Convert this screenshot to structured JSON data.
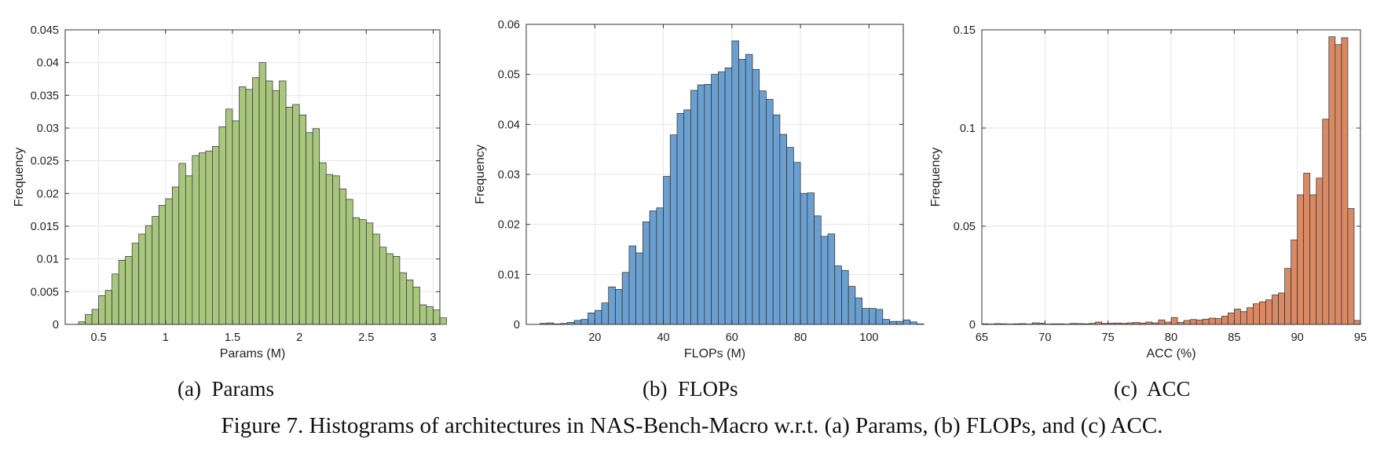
{
  "figure": {
    "caption": "Figure 7. Histograms of architectures in NAS-Bench-Macro w.r.t. (a) Params, (b) FLOPs, and (c) ACC."
  },
  "chart_data": [
    {
      "type": "bar",
      "subcaption": "(a)  Params",
      "xlabel": "Params (M)",
      "ylabel": "Frequency",
      "color": "#a9c67f",
      "grid": true,
      "xlim": [
        0.25,
        3.05
      ],
      "ylim": [
        0,
        0.045
      ],
      "xticks": [
        0.5,
        1,
        1.5,
        2,
        2.5,
        3
      ],
      "xtick_labels": [
        "0.5",
        "1",
        "1.5",
        "2",
        "2.5",
        "3"
      ],
      "yticks": [
        0,
        0.005,
        0.01,
        0.015,
        0.02,
        0.025,
        0.03,
        0.035,
        0.04,
        0.045
      ],
      "ytick_labels": [
        "0",
        "0.005",
        "0.01",
        "0.015",
        "0.02",
        "0.025",
        "0.03",
        "0.035",
        "0.04",
        "0.045"
      ],
      "bin_start": 0.35,
      "bin_width": 0.05,
      "values": [
        0.0004,
        0.0015,
        0.0023,
        0.0044,
        0.0052,
        0.0077,
        0.0098,
        0.0104,
        0.0124,
        0.0138,
        0.0151,
        0.0165,
        0.0182,
        0.0192,
        0.021,
        0.0246,
        0.0227,
        0.0258,
        0.0262,
        0.0265,
        0.0272,
        0.0302,
        0.0329,
        0.0311,
        0.0363,
        0.0359,
        0.0377,
        0.04,
        0.0372,
        0.0357,
        0.0372,
        0.0332,
        0.0336,
        0.032,
        0.0293,
        0.0299,
        0.0247,
        0.0229,
        0.0227,
        0.0207,
        0.0191,
        0.0163,
        0.016,
        0.0155,
        0.0138,
        0.0118,
        0.0108,
        0.0104,
        0.0079,
        0.0068,
        0.0057,
        0.003,
        0.0027,
        0.0022,
        0.001
      ]
    },
    {
      "type": "bar",
      "subcaption": "(b)  FLOPs",
      "xlabel": "FLOPs (M)",
      "ylabel": "Frequency",
      "color": "#6a9fcf",
      "grid": true,
      "xlim": [
        0,
        110
      ],
      "ylim": [
        0,
        0.06
      ],
      "xticks": [
        20,
        40,
        60,
        80,
        100
      ],
      "xtick_labels": [
        "20",
        "40",
        "60",
        "80",
        "100"
      ],
      "yticks": [
        0,
        0.01,
        0.02,
        0.03,
        0.04,
        0.05,
        0.06
      ],
      "ytick_labels": [
        "0",
        "0.01",
        "0.02",
        "0.03",
        "0.04",
        "0.05",
        "0.06"
      ],
      "bin_start": 4,
      "bin_width": 2,
      "values": [
        0.0002,
        0.0003,
        0.0001,
        0.0002,
        0.0004,
        0.0008,
        0.001,
        0.0023,
        0.0028,
        0.0043,
        0.0075,
        0.007,
        0.0104,
        0.0157,
        0.0143,
        0.0205,
        0.0227,
        0.0233,
        0.0296,
        0.0379,
        0.0422,
        0.0429,
        0.0468,
        0.0479,
        0.048,
        0.05,
        0.0505,
        0.0513,
        0.0567,
        0.053,
        0.054,
        0.051,
        0.0467,
        0.045,
        0.0419,
        0.038,
        0.0354,
        0.0324,
        0.0262,
        0.0263,
        0.0217,
        0.0176,
        0.0181,
        0.0117,
        0.0108,
        0.0076,
        0.0053,
        0.0032,
        0.0032,
        0.003,
        0.001,
        0.0006,
        0.0006,
        0.0009,
        0.0005,
        0.0001
      ]
    },
    {
      "type": "bar",
      "subcaption": "(c)  ACC",
      "xlabel": "ACC (%)",
      "ylabel": "Frequency",
      "color": "#d98a64",
      "grid": true,
      "xlim": [
        65,
        95
      ],
      "ylim": [
        0,
        0.15
      ],
      "xticks": [
        65,
        70,
        75,
        80,
        85,
        90,
        95
      ],
      "xtick_labels": [
        "65",
        "70",
        "75",
        "80",
        "85",
        "90",
        "95"
      ],
      "yticks": [
        0,
        0.05,
        0.1,
        0.15
      ],
      "ytick_labels": [
        "0",
        "0.05",
        "0.1",
        "0.15"
      ],
      "bin_start": 65.0,
      "bin_width": 0.5,
      "values": [
        0.0003,
        0.0002,
        0.0004,
        0.0003,
        0.0002,
        0.0003,
        0.0004,
        0.0002,
        0.0008,
        0.0006,
        0.0002,
        0.0003,
        0.0003,
        0.0002,
        0.0005,
        0.0004,
        0.0003,
        0.0005,
        0.0012,
        0.0005,
        0.0006,
        0.0007,
        0.0005,
        0.0008,
        0.001,
        0.0007,
        0.0012,
        0.0008,
        0.0023,
        0.0012,
        0.0035,
        0.001,
        0.002,
        0.0025,
        0.0022,
        0.0027,
        0.0032,
        0.003,
        0.0042,
        0.0058,
        0.0078,
        0.0065,
        0.0085,
        0.0105,
        0.0115,
        0.0125,
        0.015,
        0.016,
        0.0285,
        0.043,
        0.066,
        0.077,
        0.066,
        0.0745,
        0.1045,
        0.1465,
        0.1425,
        0.146,
        0.059,
        0.002
      ]
    }
  ]
}
